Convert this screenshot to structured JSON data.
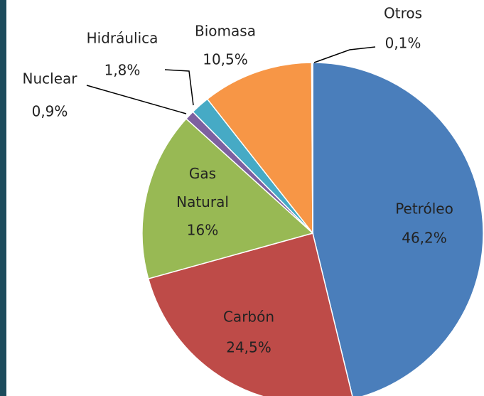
{
  "chart_data": {
    "type": "pie",
    "categories": [
      "Petróleo",
      "Carbón",
      "Gas Natural",
      "Nuclear",
      "Hidráulica",
      "Biomasa",
      "Otros"
    ],
    "values": [
      46.2,
      24.5,
      16,
      0.9,
      1.8,
      10.5,
      0.1
    ],
    "value_labels": [
      "46,2%",
      "24,5%",
      "16%",
      "0,9%",
      "1,8%",
      "10,5%",
      "0,1%"
    ],
    "colors": [
      "#4a7ebb",
      "#be4b48",
      "#98b954",
      "#7d60a0",
      "#46aac5",
      "#f79646",
      "#2c4d75"
    ]
  }
}
